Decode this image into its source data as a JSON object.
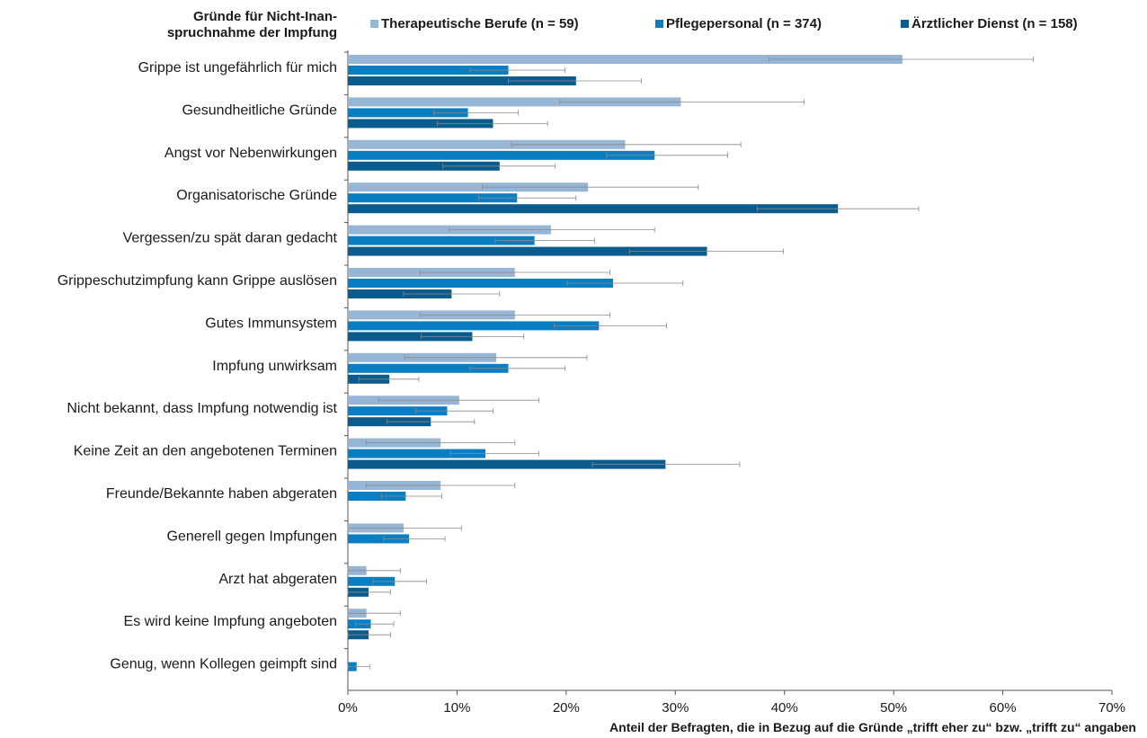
{
  "chart_data": {
    "type": "bar",
    "orientation": "horizontal",
    "y_axis_title": "Gründe für Nicht-Inanspruchnahme der Impfung",
    "y_axis_title_lines": [
      "Gründe für Nicht-Inan-",
      "spruchnahme der Impfung"
    ],
    "xlabel": "Anteil der Befragten, die in Bezug auf die Gründe „trifft eher zu“ bzw. „trifft zu“ angaben",
    "xlim": [
      0,
      70
    ],
    "xticks": [
      0,
      10,
      20,
      30,
      40,
      50,
      60,
      70
    ],
    "xtick_labels": [
      "0%",
      "10%",
      "20%",
      "30%",
      "40%",
      "50%",
      "60%",
      "70%"
    ],
    "grid": false,
    "legend_position": "top",
    "error_bars": true,
    "categories": [
      "Grippe ist ungefährlich für mich",
      "Gesundheitliche Gründe",
      "Angst vor Nebenwirkungen",
      "Organisatorische Gründe",
      "Vergessen/zu spät daran gedacht",
      "Grippeschutzimpfung kann Grippe auslösen",
      "Gutes Immunsystem",
      "Impfung unwirksam",
      "Nicht bekannt, dass Impfung notwendig ist",
      "Keine Zeit an den angebotenen Terminen",
      "Freunde/Bekannte haben abgeraten",
      "Generell gegen Impfungen",
      "Arzt hat abgeraten",
      "Es wird keine Impfung angeboten",
      "Genug, wenn Kollegen geimpft sind"
    ],
    "series": [
      {
        "name": "Therapeutische Berufe (n = 59)",
        "color": "#97b5d5",
        "values": [
          50.8,
          30.5,
          25.4,
          22.0,
          18.6,
          15.3,
          15.3,
          13.6,
          10.2,
          8.5,
          8.5,
          5.1,
          1.7,
          1.7,
          null
        ],
        "ci_low": [
          38.6,
          19.4,
          15.0,
          12.3,
          9.3,
          6.6,
          6.6,
          5.2,
          2.8,
          1.7,
          1.7,
          0.0,
          0.0,
          0.0,
          null
        ],
        "ci_high": [
          62.8,
          41.8,
          36.0,
          32.1,
          28.1,
          24.0,
          24.0,
          21.9,
          17.5,
          15.3,
          15.3,
          10.4,
          4.8,
          4.8,
          null
        ]
      },
      {
        "name": "Pflegepersonal (n = 374)",
        "color": "#0a7ec2",
        "values": [
          14.7,
          11.0,
          28.1,
          15.5,
          17.1,
          24.3,
          23.0,
          14.7,
          9.1,
          12.6,
          5.3,
          5.6,
          4.3,
          2.1,
          0.8
        ],
        "ci_low": [
          11.2,
          7.9,
          23.7,
          12.0,
          13.5,
          20.1,
          18.9,
          11.2,
          6.2,
          9.4,
          3.1,
          3.3,
          2.3,
          0.7,
          0.0
        ],
        "ci_high": [
          19.9,
          15.6,
          34.8,
          20.9,
          22.6,
          30.7,
          29.2,
          19.9,
          13.3,
          17.5,
          8.6,
          8.9,
          7.2,
          4.2,
          2.0
        ]
      },
      {
        "name": "Ärztlicher Dienst (n = 158)",
        "color": "#0a5b8e",
        "values": [
          20.9,
          13.3,
          13.9,
          44.9,
          32.9,
          9.5,
          11.4,
          3.8,
          7.6,
          29.1,
          null,
          null,
          1.9,
          1.9,
          null
        ],
        "ci_low": [
          14.7,
          8.2,
          8.7,
          37.5,
          25.8,
          5.1,
          6.7,
          1.0,
          3.6,
          22.4,
          null,
          null,
          0.0,
          0.0,
          null
        ],
        "ci_high": [
          26.9,
          18.3,
          19.0,
          52.3,
          39.9,
          13.9,
          16.1,
          6.5,
          11.6,
          35.9,
          null,
          null,
          3.9,
          3.9,
          null
        ]
      }
    ]
  }
}
